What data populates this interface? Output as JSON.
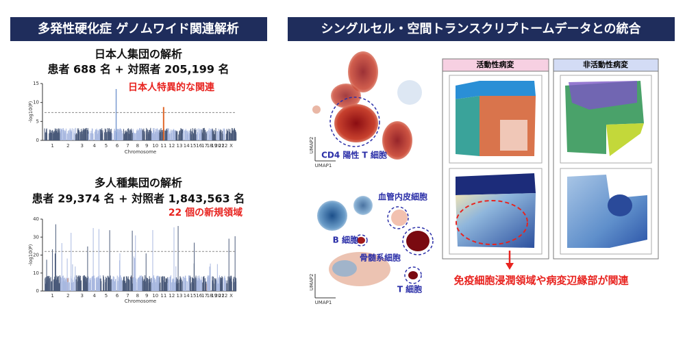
{
  "left": {
    "header": "多発性硬化症 ゲノムワイド関連解析",
    "plots": [
      {
        "title": "日本人集団の解析",
        "subtitle": "患者 688 名 + 対照者 205,199 名",
        "annotation": "日本人特異的な関連",
        "ylabel": "-log10(P)",
        "xlabel": "Chromosome",
        "ylim": [
          0,
          15
        ],
        "yticks": [
          0,
          5,
          10,
          15
        ],
        "chromosomes": [
          "1",
          "2",
          "3",
          "4",
          "5",
          "6",
          "7",
          "8",
          "9",
          "10",
          "11",
          "12",
          "13",
          "14",
          "15",
          "16",
          "17",
          "18",
          "19",
          "20",
          "21",
          "22",
          "X"
        ]
      },
      {
        "title": "多人種集団の解析",
        "subtitle": "患者 29,374 名 + 対照者 1,843,563 名",
        "annotation": "22 個の新規領域",
        "ylabel": "-log10(P)",
        "xlabel": "Chromosome",
        "ylim": [
          0,
          40
        ],
        "yticks": [
          0,
          10,
          20,
          30,
          40
        ],
        "chromosomes": [
          "1",
          "2",
          "3",
          "4",
          "5",
          "6",
          "7",
          "8",
          "9",
          "10",
          "11",
          "12",
          "13",
          "14",
          "15",
          "16",
          "17",
          "18",
          "19",
          "20",
          "21",
          "22",
          "X"
        ]
      }
    ]
  },
  "right": {
    "header": "シングルセル・空間トランスクリプトームデータとの統合",
    "umap_axes": [
      "UMAP1",
      "UMAP2"
    ],
    "cell_labels": [
      "CD4 陽性 T 細胞",
      "血管内皮細胞",
      "B 細胞",
      "骨髄系細胞",
      "T 細胞"
    ],
    "panels": [
      "活動性病変",
      "非活動性病変"
    ],
    "conclusion": "免疫細胞浸潤領域や病変辺縁部が関連"
  }
}
